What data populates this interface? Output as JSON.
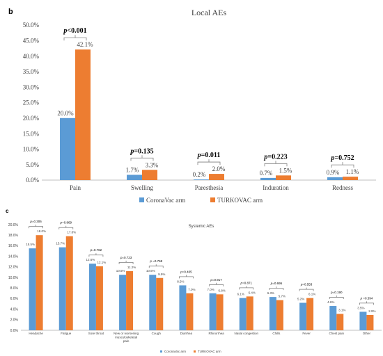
{
  "colors": {
    "coronavac": "#5B9BD5",
    "turkovac": "#ED7D31",
    "axis": "#bfbfbf",
    "bracket": "#7f7f7f",
    "text": "#404040"
  },
  "chart_data": [
    {
      "type": "bar",
      "panel": "b",
      "title": "Local AEs",
      "categories": [
        "Pain",
        "Swelling",
        "Paresthesia",
        "Induration",
        "Redness"
      ],
      "series": [
        {
          "name": "CoronaVac arm",
          "values": [
            20.0,
            1.7,
            0.2,
            0.7,
            0.9
          ],
          "labels": [
            "20.0%",
            "1.7%",
            "0.2%",
            "0.7%",
            "0.9%"
          ]
        },
        {
          "name": "TURKOVAC arm",
          "values": [
            42.1,
            3.3,
            2.0,
            1.5,
            1.1
          ],
          "labels": [
            "42.1%",
            "3.3%",
            "2.0%",
            "1.5%",
            "1.1%"
          ]
        }
      ],
      "pvalues": [
        {
          "p": "p",
          "rest": "<0.001"
        },
        {
          "p": "p",
          "rest": "=0.135"
        },
        {
          "p": "p",
          "rest": "=0.011"
        },
        {
          "p": "p",
          "rest": "=0.223"
        },
        {
          "p": "p",
          "rest": "=0.752"
        }
      ],
      "ylim": [
        0,
        50
      ],
      "yticks": [
        "0.0%",
        "5.0%",
        "10.0%",
        "15.0%",
        "20.0%",
        "25.0%",
        "30.0%",
        "35.0%",
        "40.0%",
        "45.0%",
        "50.0%"
      ],
      "legend": "bottom"
    },
    {
      "type": "bar",
      "panel": "c",
      "title": "Systemic AEs",
      "categories": [
        "Headache",
        "Fatigue",
        "Sore throat",
        "New or worsening musculoskeletal pain",
        "Cough",
        "Diarrhea",
        "Rhinorrhea",
        "Nasal congestion",
        "Chills",
        "Fever",
        "Chest pain",
        "Other"
      ],
      "series": [
        {
          "name": "CoronaVac arm",
          "values": [
            15.5,
            15.7,
            12.6,
            10.5,
            10.5,
            8.5,
            7.0,
            6.1,
            6.3,
            5.2,
            4.6,
            3.5
          ],
          "labels": [
            "15.5%",
            "15.7%",
            "12.6%",
            "10.5%",
            "10.5%",
            "8.5%",
            "7.0%",
            "6.1%",
            "6.3%",
            "5.2%",
            "4.6%",
            "3.5%"
          ]
        },
        {
          "name": "TURKOVAC arm",
          "values": [
            18.0,
            17.8,
            12.1,
            11.2,
            9.9,
            7.0,
            6.8,
            6.4,
            5.7,
            6.1,
            3.1,
            2.9
          ],
          "labels": [
            "18.0%",
            "17.8%",
            "12.1%",
            "11.2%",
            "9.9%",
            "7.0%",
            "6.8%",
            "6.4%",
            "5.7%",
            "6.1%",
            "3.1%",
            "2.9%"
          ]
        }
      ],
      "pvalues": [
        {
          "p": "p",
          "rest": "=0.306"
        },
        {
          "p": "p",
          "rest": "=0.869"
        },
        {
          "p": "p",
          "rest": "=0.762"
        },
        {
          "p": "p",
          "rest": "=0.723"
        },
        {
          "p": "p",
          "rest": " =0.768"
        },
        {
          "p": "p",
          "rest": "=0.405"
        },
        {
          "p": "p",
          "rest": "=0.917"
        },
        {
          "p": "p",
          "rest": "=0.871"
        },
        {
          "p": "p",
          "rest": "=0.695"
        },
        {
          "p": "p",
          "rest": "=0.553"
        },
        {
          "p": "p",
          "rest": "=0.190"
        },
        {
          "p": "p",
          "rest": " =0.594"
        }
      ],
      "ylim": [
        0,
        20
      ],
      "yticks": [
        "0.0%",
        "2.0%",
        "4.0%",
        "6.0%",
        "8.0%",
        "10.0%",
        "12.0%",
        "14.0%",
        "16.0%",
        "18.0%",
        "20.0%"
      ],
      "legend": "bottom"
    }
  ]
}
